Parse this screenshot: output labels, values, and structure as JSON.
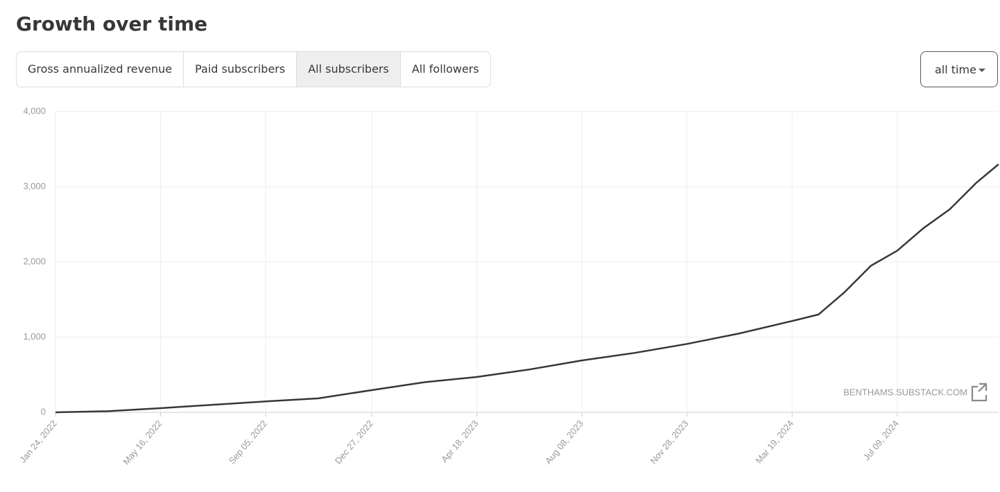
{
  "header": {
    "title": "Growth over time"
  },
  "tabs": [
    "Gross annualized revenue",
    "Paid subscribers",
    "All subscribers",
    "All followers"
  ],
  "active_tab": 2,
  "dropdown": {
    "label": "all time"
  },
  "chart_data": {
    "type": "line",
    "x": [
      "2022-01-24",
      "2022-03-21",
      "2022-05-16",
      "2022-07-11",
      "2022-09-05",
      "2022-10-31",
      "2022-12-27",
      "2023-02-21",
      "2023-04-18",
      "2023-06-13",
      "2023-08-08",
      "2023-10-03",
      "2023-11-28",
      "2024-01-23",
      "2024-03-19",
      "2024-04-16",
      "2024-05-14",
      "2024-06-11",
      "2024-07-09",
      "2024-08-06",
      "2024-09-03",
      "2024-10-01",
      "2024-10-25"
    ],
    "values": [
      0,
      15,
      55,
      100,
      145,
      185,
      295,
      400,
      470,
      570,
      690,
      790,
      910,
      1050,
      1215,
      1300,
      1600,
      1950,
      2150,
      2450,
      2700,
      3050,
      3300
    ],
    "color": "#363737",
    "xlim": [
      "2022-01-24",
      "2024-10-25"
    ],
    "xticks": [
      {
        "value": "2022-01-24",
        "label": "Jan 24, 2022"
      },
      {
        "value": "2022-05-16",
        "label": "May 16, 2022"
      },
      {
        "value": "2022-09-05",
        "label": "Sep 05, 2022"
      },
      {
        "value": "2022-12-27",
        "label": "Dec 27, 2022"
      },
      {
        "value": "2023-04-18",
        "label": "Apr 18, 2023"
      },
      {
        "value": "2023-08-08",
        "label": "Aug 08, 2023"
      },
      {
        "value": "2023-11-28",
        "label": "Nov 28, 2023"
      },
      {
        "value": "2024-03-19",
        "label": "Mar 19, 2024"
      },
      {
        "value": "2024-07-09",
        "label": "Jul 09, 2024"
      }
    ],
    "ylim": [
      0,
      4000
    ],
    "yticks": [
      0,
      {
        "value": 1000,
        "label": "1,000"
      },
      {
        "value": 2000,
        "label": "2,000"
      },
      {
        "value": 3000,
        "label": "3,000"
      },
      {
        "value": 4000,
        "label": "4,000"
      }
    ],
    "grid": true,
    "watermark": "BENTHAMS.SUBSTACK.COM"
  }
}
